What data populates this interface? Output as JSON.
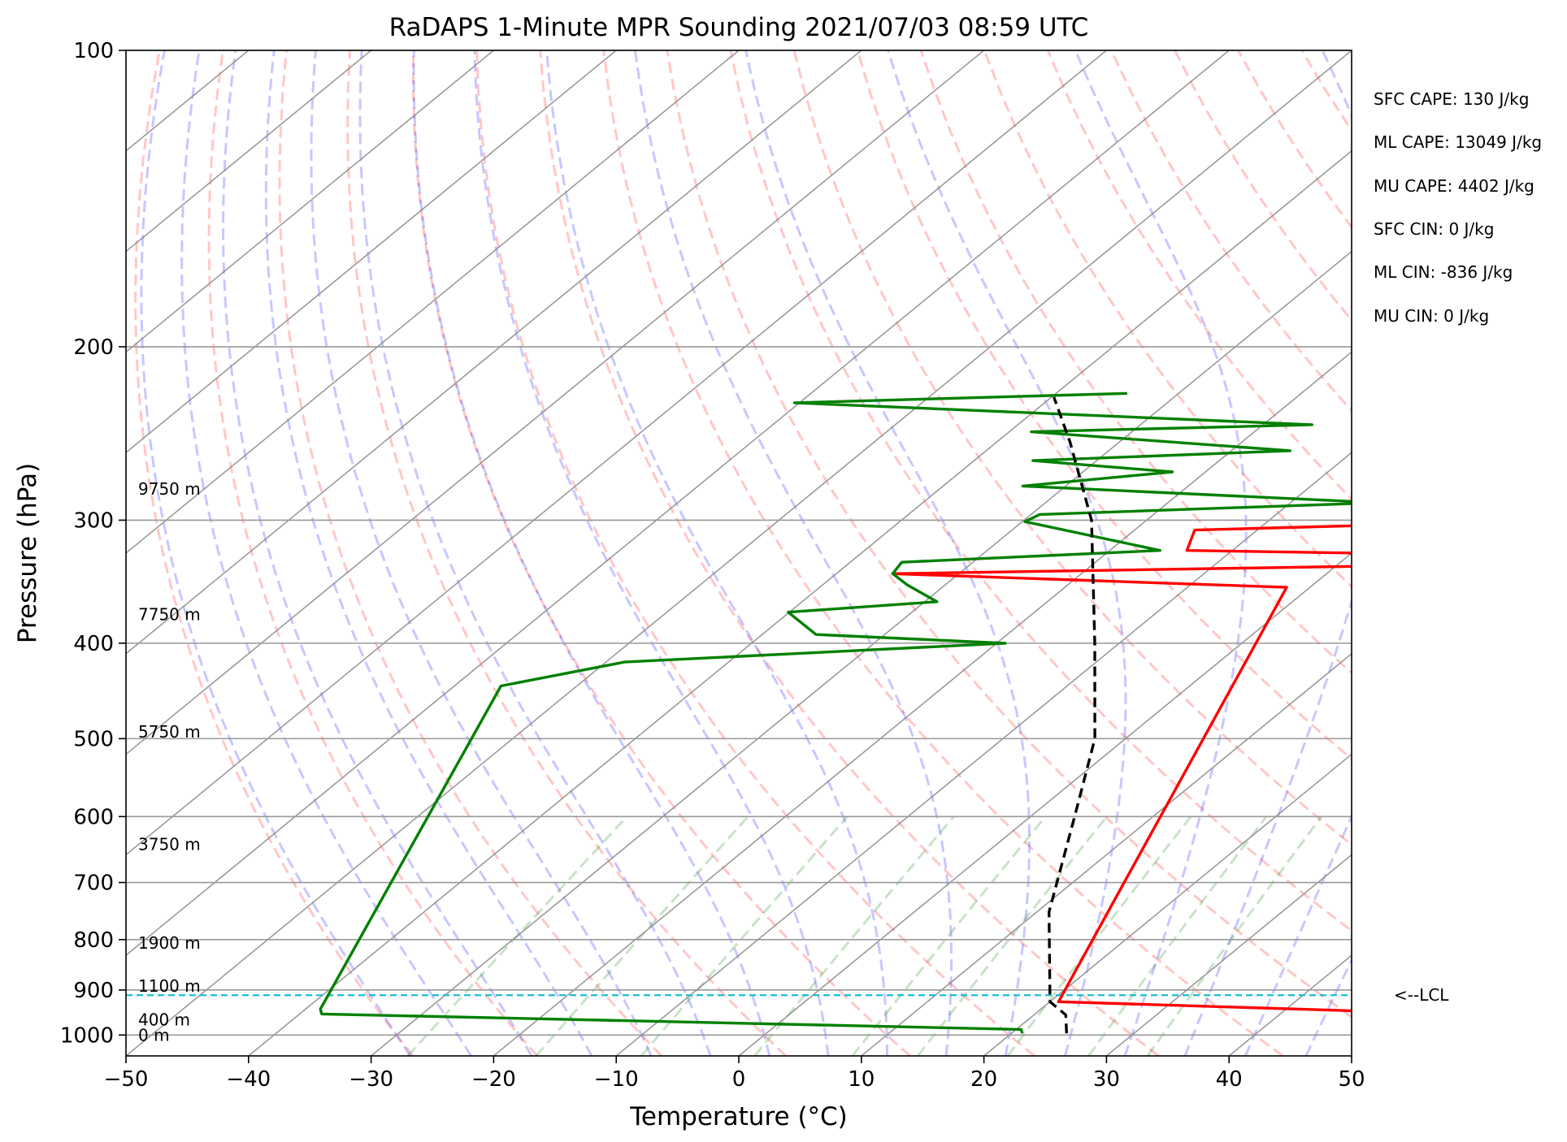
{
  "chart_data": {
    "type": "line",
    "title": "RaDAPS 1-Minute MPR Sounding 2021/07/03 08:59 UTC",
    "xlabel": "Temperature (°C)",
    "ylabel": "Pressure (hPa)",
    "xlim": [
      -50,
      50
    ],
    "ylim": [
      1050,
      100
    ],
    "y_scale": "log",
    "skew": "skew-T",
    "x_ticks": [
      -50,
      -40,
      -30,
      -20,
      -10,
      0,
      10,
      20,
      30,
      40,
      50
    ],
    "x_tick_labels": [
      "−50",
      "−40",
      "−30",
      "−20",
      "−10",
      "0",
      "10",
      "20",
      "30",
      "40",
      "50"
    ],
    "y_ticks": [
      100,
      200,
      300,
      400,
      500,
      600,
      700,
      800,
      900,
      1000
    ],
    "y_tick_labels": [
      "100",
      "200",
      "300",
      "400",
      "500",
      "600",
      "700",
      "800",
      "900",
      "1000"
    ],
    "grid": true,
    "height_labels": [
      {
        "text": "9750 m",
        "p": 279
      },
      {
        "text": "7750 m",
        "p": 374
      },
      {
        "text": "5750 m",
        "p": 492
      },
      {
        "text": "3750 m",
        "p": 640
      },
      {
        "text": "1900 m",
        "p": 806
      },
      {
        "text": "1100 m",
        "p": 892
      },
      {
        "text": "400 m",
        "p": 965
      },
      {
        "text": "0 m",
        "p": 1000
      }
    ],
    "indices": [
      "SFC CAPE: 130 J/kg",
      "ML CAPE: 13049 J/kg",
      "MU CAPE: 4402 J/kg",
      "SFC CIN: 0 J/kg",
      "ML CIN: -836 J/kg",
      "MU CIN: 0 J/kg"
    ],
    "lcl": {
      "label": "<--LCL",
      "p": 911
    },
    "series": [
      {
        "color": "#ff0000",
        "points": [
          [
            66.3,
            1000
          ],
          [
            70.5,
            965
          ],
          [
            20.7,
            925
          ],
          [
            -1.9,
            351
          ],
          [
            -35.4,
            340
          ],
          [
            35.3,
            329
          ],
          [
            -13.7,
            322
          ],
          [
            -15.1,
            307
          ],
          [
            25.9,
            297
          ],
          [
            26.9,
            287
          ]
        ]
      },
      {
        "color": "#008000",
        "points": [
          [
            20.9,
            996
          ],
          [
            20.4,
            987
          ],
          [
            -38.2,
            952
          ],
          [
            -38.8,
            941
          ],
          [
            -56.2,
            442
          ],
          [
            -48.5,
            418
          ],
          [
            -19.3,
            400
          ],
          [
            -35.6,
            392
          ],
          [
            -40.1,
            372
          ],
          [
            -29.0,
            363
          ],
          [
            -33.1,
            349
          ],
          [
            -35.4,
            340
          ],
          [
            -35.8,
            331
          ],
          [
            -15.9,
            322
          ],
          [
            -29.8,
            301
          ],
          [
            -29.3,
            296
          ],
          [
            -2.8,
            288
          ],
          [
            -33.5,
            277
          ],
          [
            -22.7,
            268
          ],
          [
            -35.2,
            261
          ],
          [
            -15.2,
            255
          ],
          [
            -38.2,
            244
          ],
          [
            -16.0,
            240
          ],
          [
            -60.4,
            228
          ],
          [
            -34.2,
            223
          ]
        ]
      },
      {
        "color": "#000000",
        "dashed": true,
        "points": [
          [
            24.5,
            996
          ],
          [
            22.6,
            954
          ],
          [
            20.0,
            925
          ],
          [
            11.0,
            750
          ],
          [
            3.6,
            600
          ],
          [
            -2.5,
            500
          ],
          [
            -12.0,
            400
          ],
          [
            -24.5,
            300
          ],
          [
            -34.0,
            250
          ],
          [
            -39.8,
            225
          ]
        ]
      }
    ]
  }
}
